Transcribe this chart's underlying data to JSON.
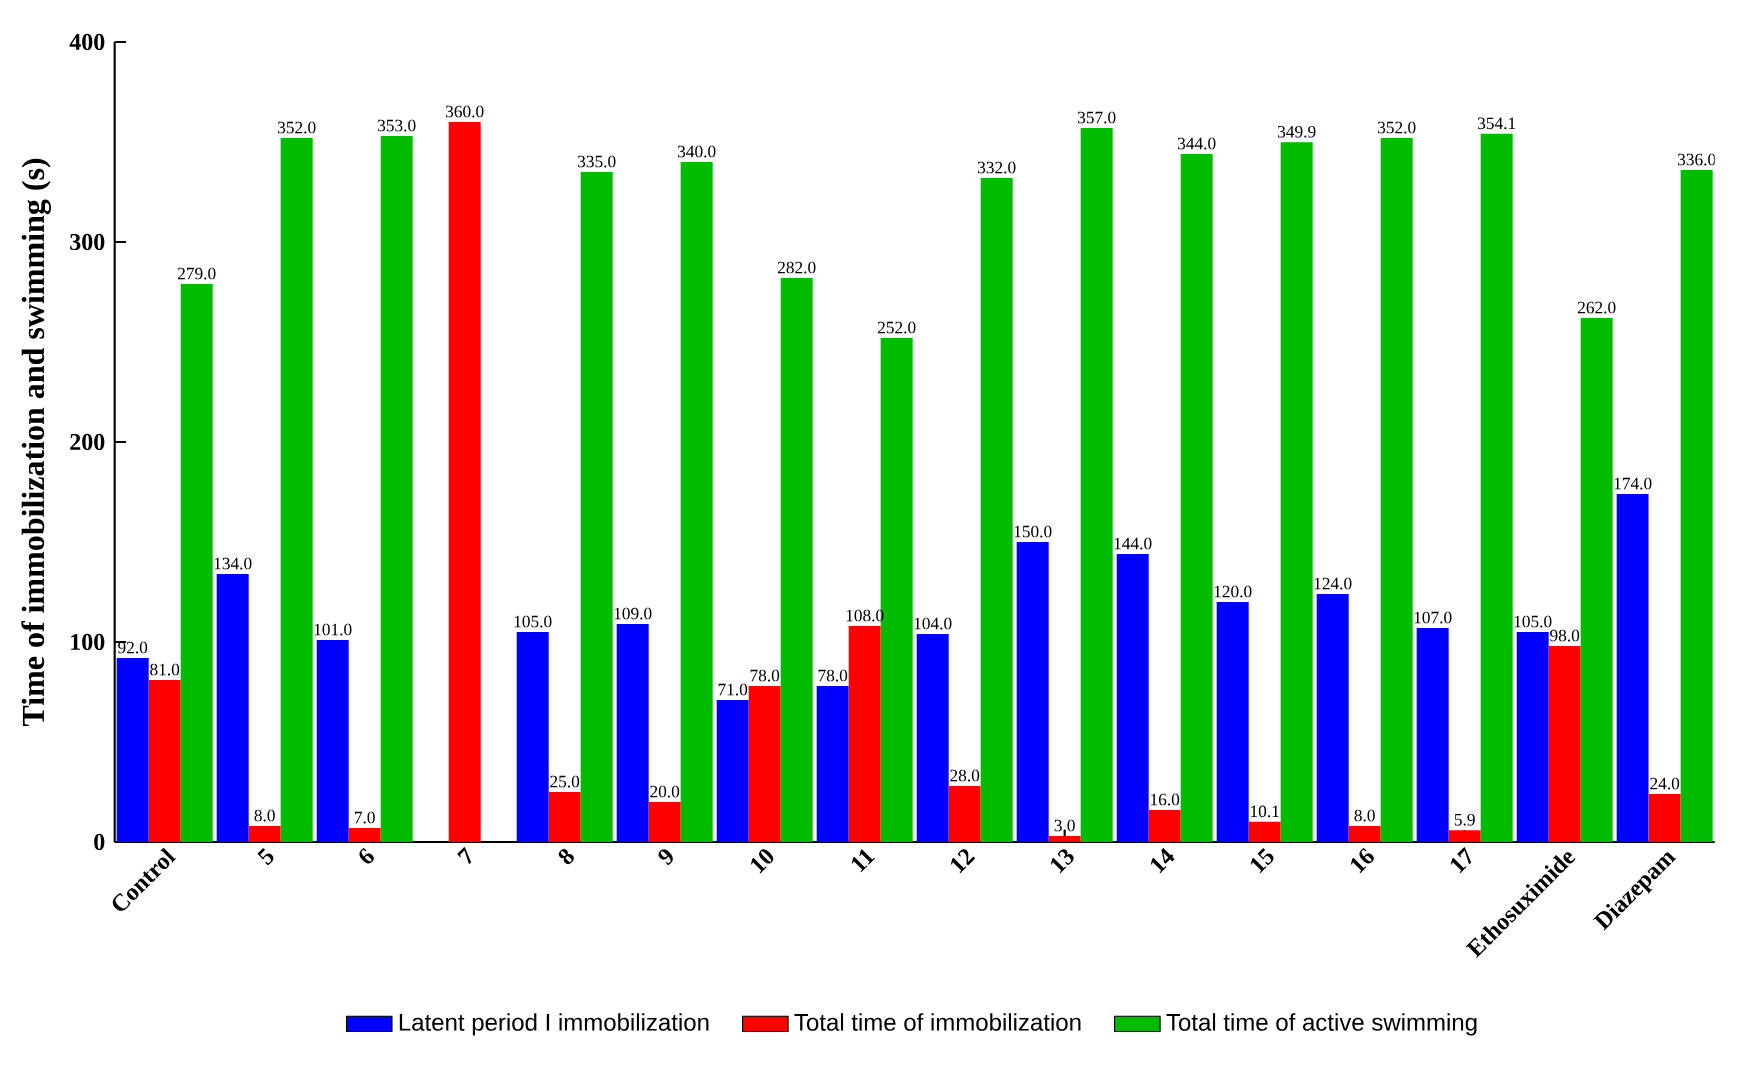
{
  "chart_data": {
    "type": "bar",
    "ylabel": "Time of immobilization and swimming (s)",
    "categories": [
      "Control",
      "5",
      "6",
      "7",
      "8",
      "9",
      "10",
      "11",
      "12",
      "13",
      "14",
      "15",
      "16",
      "17",
      "Ethosuximide",
      "Diazepam"
    ],
    "series": [
      {
        "name": "Latent period I immobilization",
        "color": "#0000ff",
        "values": [
          92,
          134,
          101,
          null,
          105,
          109,
          71,
          78,
          104,
          150,
          144,
          120,
          124,
          107,
          105,
          174
        ],
        "value_labels": [
          "92.0",
          "134.0",
          "101.0",
          null,
          "105.0",
          "109.0",
          "71.0",
          "78.0",
          "104.0",
          "150.0",
          "144.0",
          "120.0",
          "124.0",
          "107.0",
          "105.0",
          "174.0"
        ]
      },
      {
        "name": "Total time of immobilization",
        "color": "#ff0000",
        "values": [
          81,
          8,
          7,
          360,
          25,
          20,
          78,
          108,
          28,
          3,
          16,
          10.1,
          8,
          5.9,
          98,
          24
        ],
        "value_labels": [
          "81.0",
          "8.0",
          "7.0",
          "360.0",
          "25.0",
          "20.0",
          "78.0",
          "108.0",
          "28.0",
          "3.0",
          "16.0",
          "10.1",
          "8.0",
          "5.9",
          "98.0",
          "24.0"
        ]
      },
      {
        "name": "Total time of active swimming",
        "color": "#00bb00",
        "values": [
          279,
          352,
          353,
          null,
          335,
          340,
          282,
          252,
          332,
          357,
          344,
          349.9,
          352,
          354.1,
          262,
          336
        ],
        "value_labels": [
          "279.0",
          "352.0",
          "353.0",
          null,
          "335.0",
          "340.0",
          "282.0",
          "252.0",
          "332.0",
          "357.0",
          "344.0",
          "349.9",
          "352.0",
          "354.1",
          "262.0",
          "336.0"
        ]
      }
    ],
    "ylim": [
      0,
      400
    ],
    "yticks": [
      0,
      100,
      200,
      300,
      400
    ],
    "grid": false,
    "legend": "bottom"
  }
}
